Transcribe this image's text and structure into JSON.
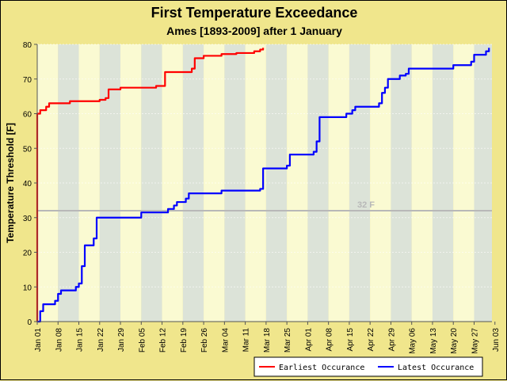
{
  "chart_data": {
    "type": "line",
    "title": "First Temperature Exceedance",
    "subtitle": "Ames [1893-2009] after 1 January",
    "ylabel": "Temperature Threshold [F]",
    "xlabel": "",
    "ylim": [
      0,
      80
    ],
    "yticks": [
      0,
      10,
      20,
      30,
      40,
      50,
      60,
      70,
      80
    ],
    "xlim_days": [
      0,
      153
    ],
    "xtick_labels": [
      "Jan 01",
      "Jan 08",
      "Jan 15",
      "Jan 22",
      "Jan 29",
      "Feb 05",
      "Feb 12",
      "Feb 19",
      "Feb 26",
      "Mar 04",
      "Mar 11",
      "Mar 18",
      "Mar 25",
      "Apr 01",
      "Apr 08",
      "Apr 15",
      "Apr 22",
      "Apr 29",
      "May 06",
      "May 13",
      "May 20",
      "May 27",
      "Jun 03"
    ],
    "reference_line": {
      "value": 32,
      "label": "32 F",
      "color": "#b8b8b8"
    },
    "grid": true,
    "legend_position": "bottom-right",
    "colors": {
      "background": "#f0e68c",
      "band_light": "#fafad2",
      "band_dark": "#dce3d8"
    },
    "series": [
      {
        "name": "Earliest Occurance",
        "color": "#ff0000",
        "x": [
          "Jan 01",
          "Jan 01",
          "Jan 01",
          "Jan 02",
          "Jan 04",
          "Jan 05",
          "Jan 12",
          "Jan 22",
          "Jan 24",
          "Jan 25",
          "Jan 29",
          "Feb 10",
          "Feb 12",
          "Feb 13",
          "Feb 22",
          "Feb 23",
          "Feb 26",
          "Mar 04",
          "Mar 09",
          "Mar 15",
          "Mar 17",
          "Mar 18"
        ],
        "y": [
          0,
          50,
          60,
          61,
          62,
          63,
          63.6,
          64,
          64.5,
          67,
          67.5,
          68,
          68,
          72,
          73,
          76,
          76.7,
          77.2,
          77.5,
          78,
          78.5,
          79
        ]
      },
      {
        "name": "Latest Occurance",
        "color": "#0000ff",
        "x": [
          "Jan 01",
          "Jan 02",
          "Jan 03",
          "Jan 07",
          "Jan 08",
          "Jan 09",
          "Jan 14",
          "Jan 15",
          "Jan 16",
          "Jan 17",
          "Jan 20",
          "Jan 21",
          "Feb 05",
          "Feb 14",
          "Feb 16",
          "Feb 17",
          "Feb 20",
          "Feb 21",
          "Mar 04",
          "Mar 17",
          "Mar 18",
          "Mar 26",
          "Mar 27",
          "Apr 04",
          "Apr 05",
          "Apr 06",
          "Apr 15",
          "Apr 17",
          "Apr 18",
          "Apr 26",
          "Apr 27",
          "Apr 28",
          "Apr 29",
          "May 03",
          "May 05",
          "May 06",
          "May 21",
          "May 27",
          "May 28",
          "Jun 01",
          "Jun 02"
        ],
        "y": [
          0,
          3,
          5,
          6,
          8,
          9,
          10,
          11,
          16,
          22,
          24,
          30,
          31.5,
          32.5,
          33.5,
          34.5,
          35.5,
          37,
          37.8,
          38.3,
          44.2,
          45,
          48.2,
          49,
          52,
          59,
          60,
          61,
          62,
          63,
          66,
          67.5,
          70,
          71,
          71.5,
          73,
          74,
          75,
          77,
          78,
          79
        ]
      }
    ]
  }
}
